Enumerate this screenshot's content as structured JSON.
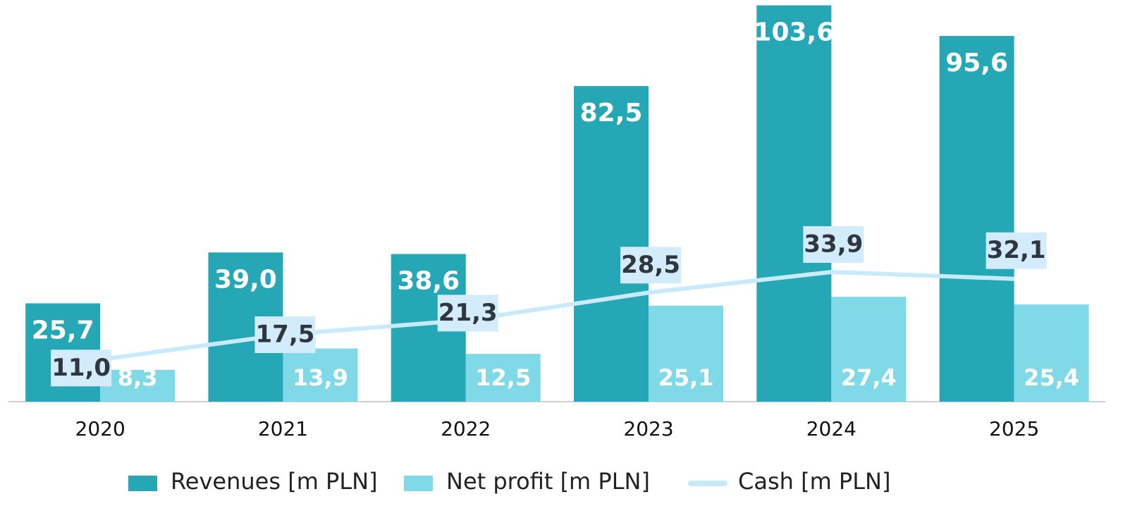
{
  "chart_data": {
    "type": "bar-line",
    "categories": [
      "2020",
      "2021",
      "2022",
      "2023",
      "2024",
      "2025"
    ],
    "series": [
      {
        "name": "Revenues [m PLN]",
        "type": "bar",
        "color": "#26a7b5",
        "values": [
          25.7,
          39.0,
          38.6,
          82.5,
          103.6,
          95.6
        ],
        "value_labels": [
          "25,7",
          "39,0",
          "38,6",
          "82,5",
          "103,6",
          "95,6"
        ]
      },
      {
        "name": "Net profit [m PLN]",
        "type": "bar",
        "color": "#7fd9e6",
        "values": [
          8.3,
          13.9,
          12.5,
          25.1,
          27.4,
          25.4
        ],
        "value_labels": [
          "8,3",
          "13,9",
          "12,5",
          "25,1",
          "27,4",
          "25,4"
        ]
      },
      {
        "name": "Cash [m PLN]",
        "type": "line",
        "color": "#c9eafb",
        "values": [
          11.0,
          17.5,
          21.3,
          28.5,
          33.9,
          32.1
        ],
        "value_labels": [
          "11,0",
          "17,5",
          "21,3",
          "28,5",
          "33,9",
          "32,1"
        ]
      }
    ],
    "ylim": [
      0,
      105
    ]
  }
}
